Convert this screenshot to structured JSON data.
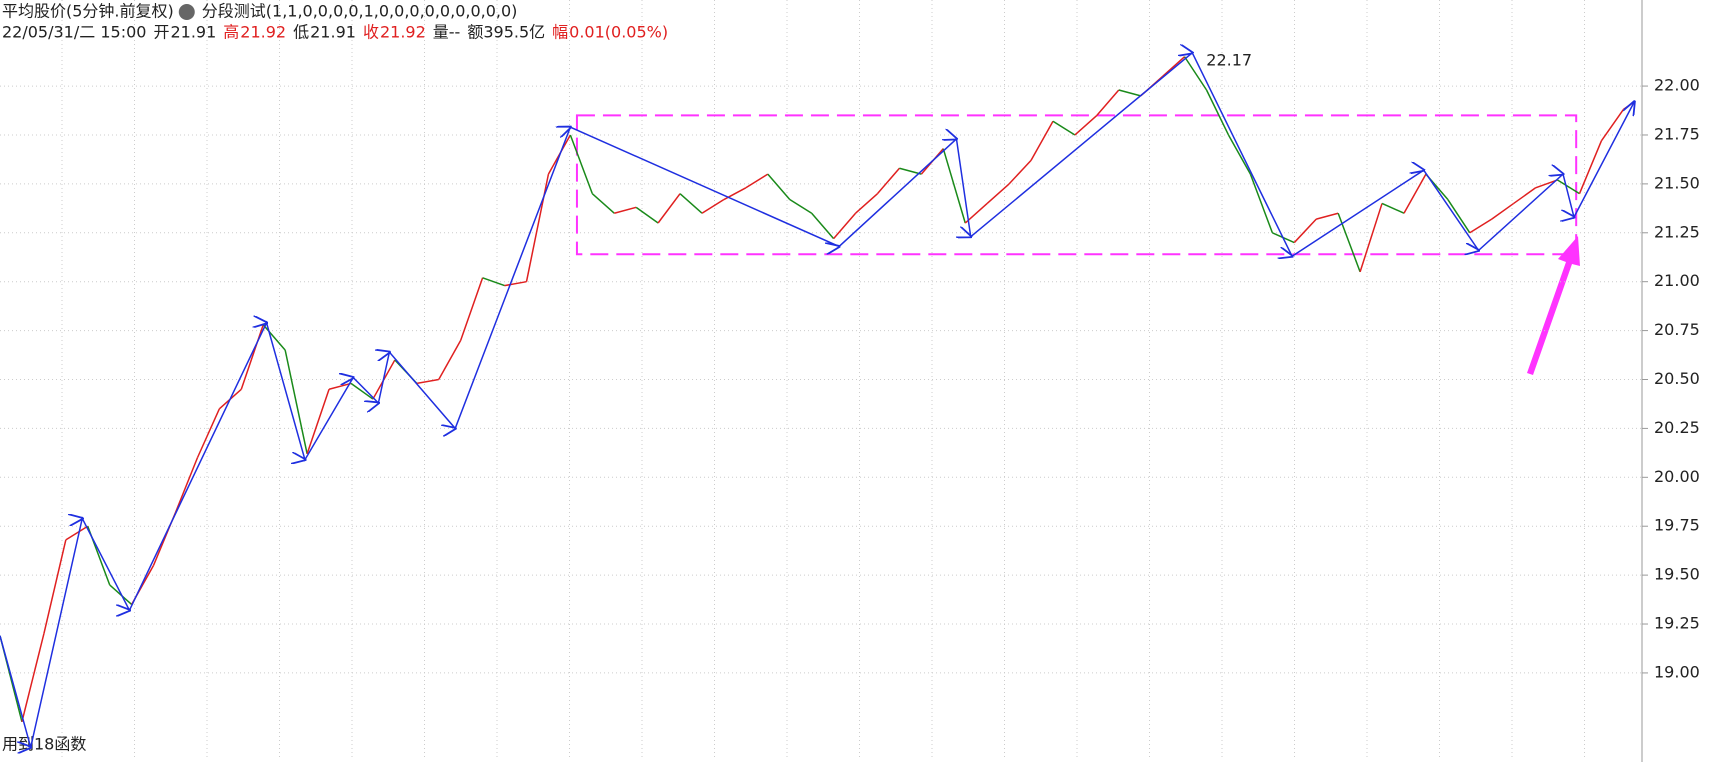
{
  "header": {
    "line1": [
      "平均股价(5分钟.前复权)",
      "分段测试(1,1,0,0,0,0,1,0,0,0,0,0,0,0,0,0)"
    ],
    "line2": [
      {
        "text": "22/05/31/二 15:00",
        "color": "#222"
      },
      {
        "text": "开",
        "color": "#222"
      },
      {
        "text": "21.91",
        "color": "#222"
      },
      {
        "text": "高",
        "color": "#e02020"
      },
      {
        "text": "21.92",
        "color": "#e02020"
      },
      {
        "text": "低",
        "color": "#222"
      },
      {
        "text": "21.91",
        "color": "#222"
      },
      {
        "text": "收",
        "color": "#e02020"
      },
      {
        "text": "21.92",
        "color": "#e02020"
      },
      {
        "text": "量--",
        "color": "#222"
      },
      {
        "text": "额395.5亿",
        "color": "#222"
      },
      {
        "text": "幅",
        "color": "#e02020"
      },
      {
        "text": "0.01(0.05%)",
        "color": "#e02020"
      }
    ],
    "footer": "用到18函数"
  },
  "chart_data": {
    "type": "line",
    "xlim": [
      0,
      1497
    ],
    "ylim": [
      18.56,
      22.44
    ],
    "grid": true,
    "yticks": [
      {
        "value": 19,
        "label": "19.00"
      },
      {
        "value": 19.25,
        "label": "19.25"
      },
      {
        "value": 19.5,
        "label": "19.50"
      },
      {
        "value": 19.75,
        "label": "19.75"
      },
      {
        "value": 20,
        "label": "20.00"
      },
      {
        "value": 20.25,
        "label": "20.25"
      },
      {
        "value": 20.5,
        "label": "20.50"
      },
      {
        "value": 20.75,
        "label": "20.75"
      },
      {
        "value": 21,
        "label": "21.00"
      },
      {
        "value": 21.25,
        "label": "21.25"
      },
      {
        "value": 21.5,
        "label": "21.50"
      },
      {
        "value": 21.75,
        "label": "21.75"
      },
      {
        "value": 22,
        "label": "22.00"
      }
    ],
    "series": [
      {
        "color": "#e02020",
        "down_color": "#1a8a1a",
        "x": [
          0,
          20,
          40,
          60,
          80,
          100,
          120,
          140,
          160,
          180,
          200,
          220,
          240,
          260,
          280,
          300,
          320,
          340,
          360,
          380,
          400,
          420,
          440,
          460,
          480,
          500,
          520,
          540,
          560,
          580,
          600,
          620,
          640,
          660,
          680,
          700,
          720,
          740,
          760,
          780,
          800,
          820,
          840,
          860,
          880,
          900,
          920,
          940,
          960,
          980,
          1000,
          1020,
          1040,
          1060,
          1080,
          1100,
          1120,
          1140,
          1160,
          1180,
          1200,
          1220,
          1240,
          1260,
          1280,
          1300,
          1320,
          1340,
          1360,
          1380,
          1400,
          1420,
          1440,
          1460,
          1480,
          1490
        ],
        "values": [
          19.19,
          18.75,
          19.2,
          19.68,
          19.75,
          19.45,
          19.35,
          19.55,
          19.82,
          20.1,
          20.35,
          20.45,
          20.78,
          20.65,
          20.12,
          20.45,
          20.48,
          20.4,
          20.6,
          20.48,
          20.5,
          20.7,
          21.02,
          20.98,
          21.0,
          21.55,
          21.75,
          21.45,
          21.35,
          21.38,
          21.3,
          21.45,
          21.35,
          21.42,
          21.48,
          21.55,
          21.42,
          21.35,
          21.22,
          21.35,
          21.45,
          21.58,
          21.55,
          21.68,
          21.3,
          21.4,
          21.5,
          21.62,
          21.82,
          21.75,
          21.85,
          21.98,
          21.95,
          22.05,
          22.15,
          21.98,
          21.75,
          21.55,
          21.25,
          21.2,
          21.32,
          21.35,
          21.05,
          21.4,
          21.35,
          21.55,
          21.42,
          21.25,
          21.32,
          21.4,
          21.48,
          21.52,
          21.45,
          21.72,
          21.88,
          21.92
        ]
      },
      {
        "color": "#1f2fe0",
        "x": [
          0,
          28,
          75,
          118,
          243,
          278,
          322,
          345,
          355,
          415,
          520,
          765,
          872,
          885,
          1087,
          1178,
          1298,
          1348,
          1425,
          1435,
          1490
        ],
        "values": [
          19.19,
          18.62,
          19.79,
          19.32,
          20.79,
          20.09,
          20.51,
          20.38,
          20.64,
          20.25,
          21.79,
          21.18,
          21.73,
          21.23,
          22.17,
          21.13,
          21.57,
          21.16,
          21.55,
          21.33,
          21.92
        ]
      }
    ],
    "box": {
      "x": [
        526,
        1437
      ],
      "y": [
        21.14,
        21.85
      ],
      "color": "#ff33ff"
    },
    "annotations": [
      {
        "x": 1087,
        "y": 22.17
      }
    ]
  }
}
